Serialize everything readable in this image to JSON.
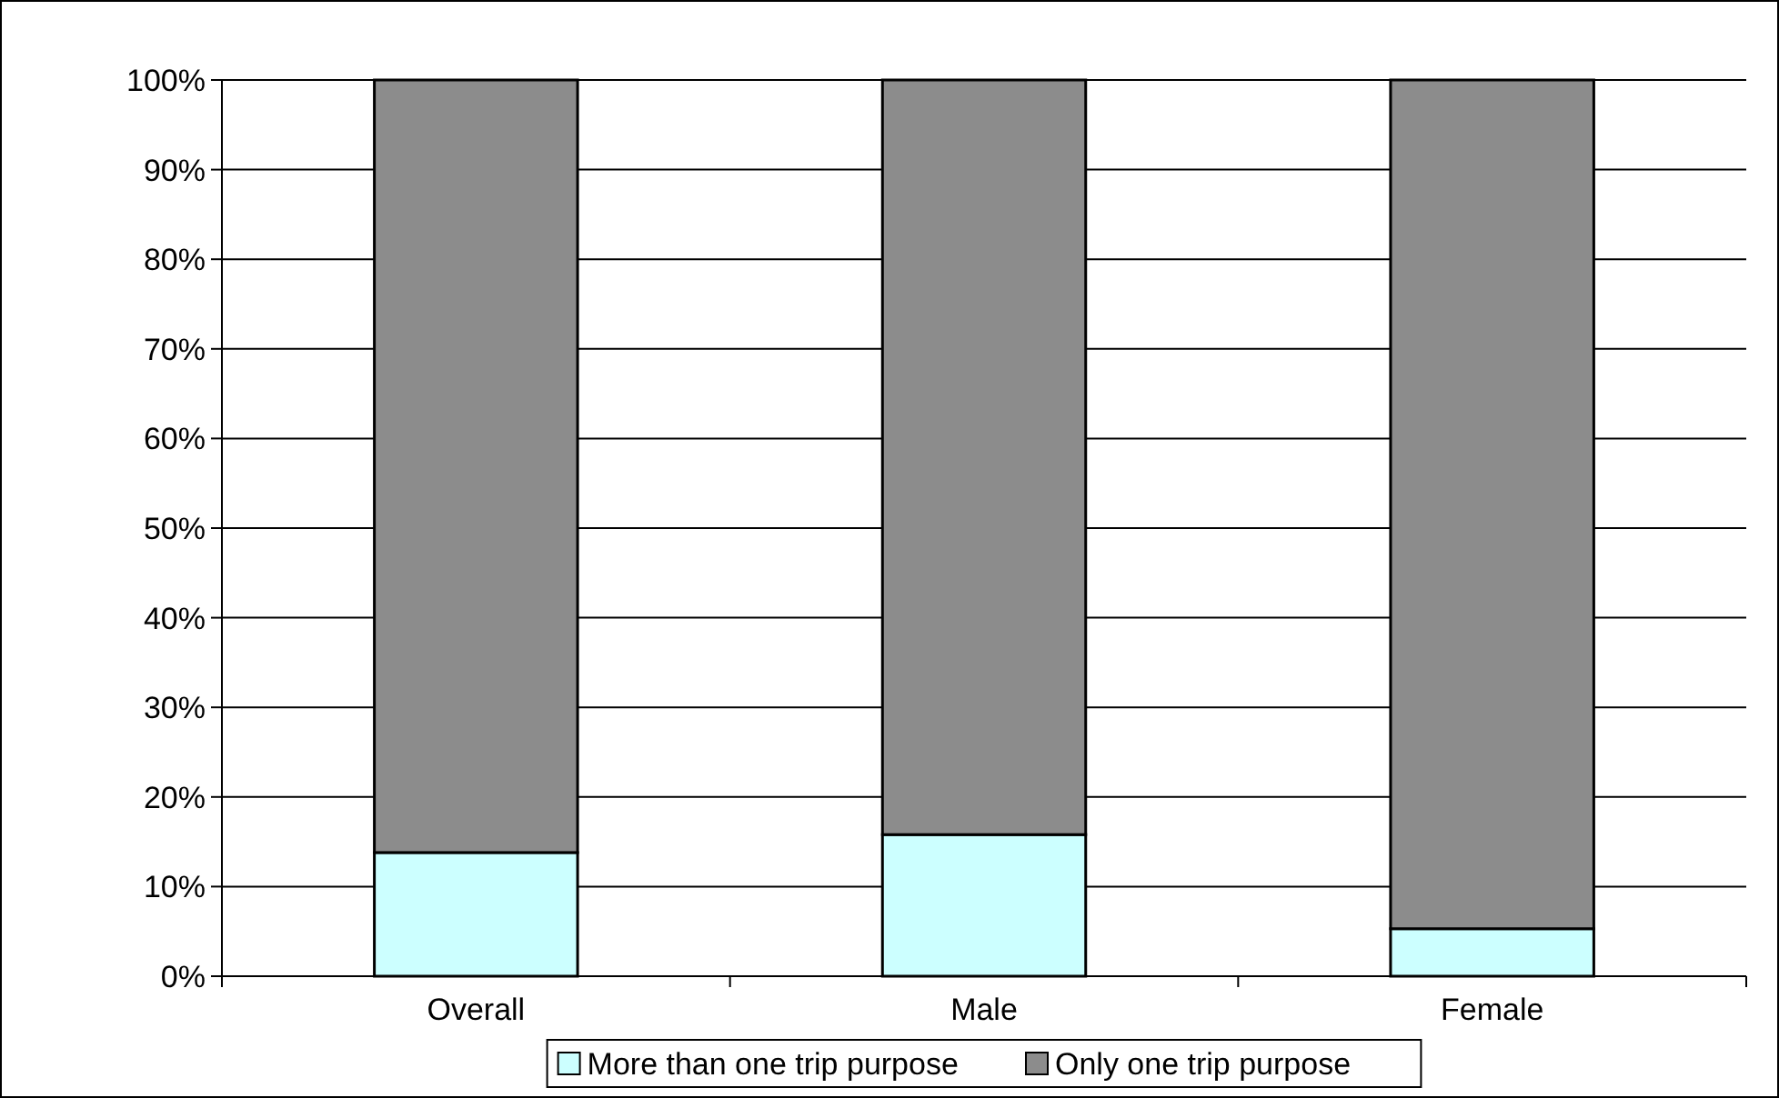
{
  "chart_data": {
    "type": "bar",
    "stacked": true,
    "categories": [
      "Overall",
      "Male",
      "Female"
    ],
    "series": [
      {
        "name": "More than one trip purpose",
        "color": "#ccffff",
        "values": [
          13.8,
          15.8,
          5.3
        ]
      },
      {
        "name": "Only one trip purpose",
        "color": "#8c8c8c",
        "values": [
          86.2,
          84.2,
          94.7
        ]
      }
    ],
    "ylim": [
      0,
      100
    ],
    "yticks": [
      {
        "value": 0,
        "label": "0%"
      },
      {
        "value": 10,
        "label": "10%"
      },
      {
        "value": 20,
        "label": "20%"
      },
      {
        "value": 30,
        "label": "30%"
      },
      {
        "value": 40,
        "label": "40%"
      },
      {
        "value": 50,
        "label": "50%"
      },
      {
        "value": 60,
        "label": "60%"
      },
      {
        "value": 70,
        "label": "70%"
      },
      {
        "value": 80,
        "label": "80%"
      },
      {
        "value": 90,
        "label": "90%"
      },
      {
        "value": 100,
        "label": "100%"
      }
    ],
    "grid": "y",
    "legend": "bottom"
  }
}
